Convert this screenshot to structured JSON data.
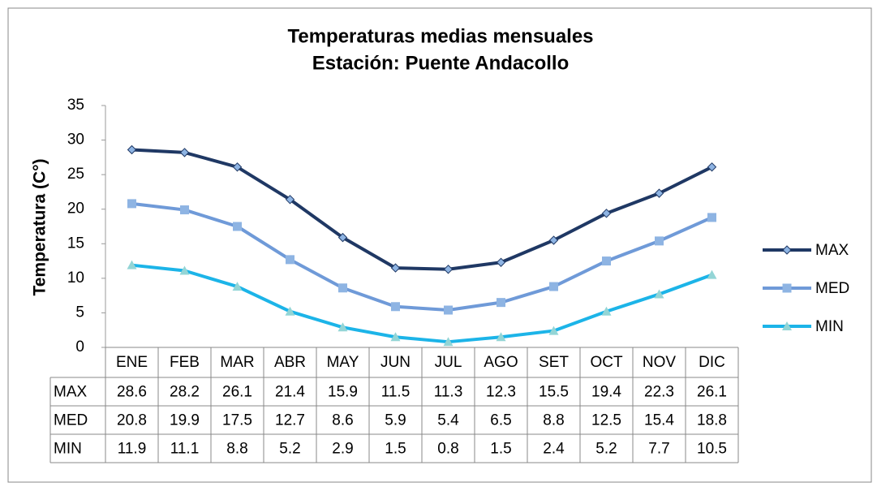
{
  "chart_data": {
    "type": "line",
    "title": "Temperaturas medias mensuales",
    "subtitle": "Estación: Puente Andacollo",
    "y_label": "Temperatura (C°)",
    "categories": [
      "ENE",
      "FEB",
      "MAR",
      "ABR",
      "MAY",
      "JUN",
      "JUL",
      "AGO",
      "SET",
      "OCT",
      "NOV",
      "DIC"
    ],
    "series": [
      {
        "name": "MAX",
        "color": "#1f3864",
        "marker": "diamond",
        "marker_color": "#8eb4e3",
        "values": [
          28.6,
          28.2,
          26.1,
          21.4,
          15.9,
          11.5,
          11.3,
          12.3,
          15.5,
          19.4,
          22.3,
          26.1
        ]
      },
      {
        "name": "MED",
        "color": "#6f9ad8",
        "marker": "square",
        "marker_color": "#8eb4e3",
        "values": [
          20.8,
          19.9,
          17.5,
          12.7,
          8.6,
          5.9,
          5.4,
          6.5,
          8.8,
          12.5,
          15.4,
          18.8
        ]
      },
      {
        "name": "MIN",
        "color": "#1cb4e8",
        "marker": "triangle",
        "marker_color": "#93d5d6",
        "values": [
          11.9,
          11.1,
          8.8,
          5.2,
          2.9,
          1.5,
          0.8,
          1.5,
          2.4,
          5.2,
          7.7,
          10.5
        ]
      }
    ],
    "ylim": [
      0,
      35
    ],
    "yticks": [
      0,
      5,
      10,
      15,
      20,
      25,
      30,
      35
    ],
    "grid": false,
    "legend": "right",
    "data_table": true
  }
}
